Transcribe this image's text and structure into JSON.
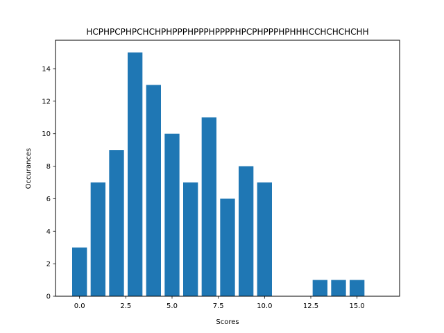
{
  "chart_data": {
    "type": "bar",
    "title": "HCPHPCPHPCHCHPHPPPHPPPHPPPPHPCPHPPPHPHHHCCHCHCHCHH",
    "xlabel": "Scores",
    "ylabel": "Occurances",
    "x": [
      0,
      1,
      2,
      3,
      4,
      5,
      6,
      7,
      8,
      9,
      10,
      13,
      14,
      15
    ],
    "values": [
      3,
      7,
      9,
      15,
      13,
      10,
      7,
      11,
      6,
      8,
      7,
      1,
      1,
      1
    ],
    "xlim": [
      -1.3,
      17.3
    ],
    "ylim": [
      0,
      15.75
    ],
    "xticks": [
      0,
      2.5,
      5,
      7.5,
      10,
      12.5,
      15
    ],
    "xtick_labels": [
      "0.0",
      "2.5",
      "5.0",
      "7.5",
      "10.0",
      "12.5",
      "15.0"
    ],
    "yticks": [
      0,
      2,
      4,
      6,
      8,
      10,
      12,
      14
    ],
    "ytick_labels": [
      "0",
      "2",
      "4",
      "6",
      "8",
      "10",
      "12",
      "14"
    ],
    "bar_color": "#1f77b4",
    "grid": false,
    "legend": false
  }
}
